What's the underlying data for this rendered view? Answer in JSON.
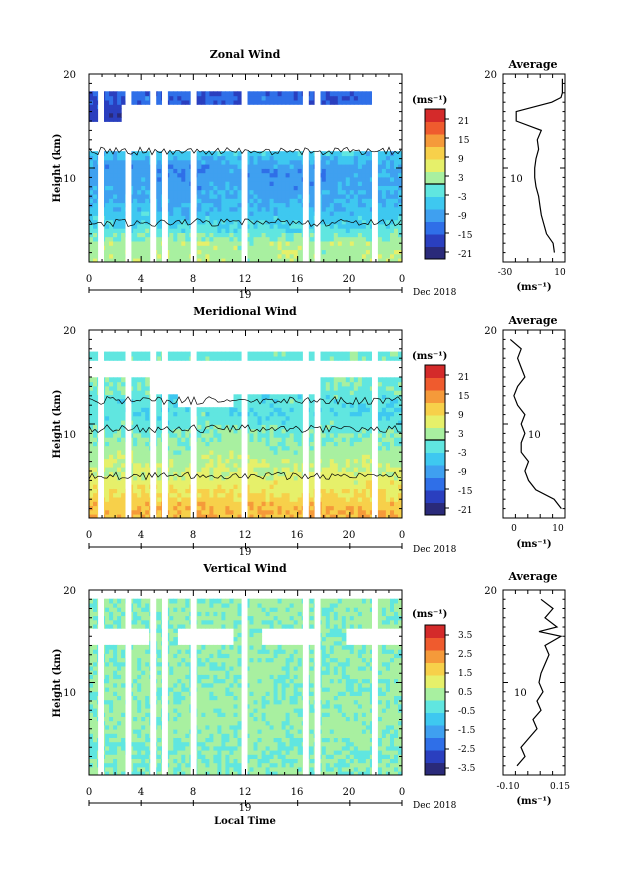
{
  "panels": [
    {
      "title": "Zonal Wind",
      "ylabel": "Height (km)",
      "y_ticks": [
        "20",
        "10"
      ],
      "x_ticks": [
        "0",
        "4",
        "8",
        "12",
        "16",
        "20",
        "0"
      ],
      "date_mark": "19",
      "date_label": "Dec 2018",
      "cbar_unit": "(ms⁻¹)",
      "cbar_ticks": [
        "21",
        "15",
        "9",
        "3",
        "-3",
        "-9",
        "-15",
        "-21"
      ],
      "avg_title": "Average",
      "avg_y_ticks": [
        "20",
        "10"
      ],
      "avg_x_ticks": [
        "-30",
        "10"
      ],
      "avg_unit": "(ms⁻¹)"
    },
    {
      "title": "Meridional Wind",
      "ylabel": "Height (km)",
      "y_ticks": [
        "20",
        "10"
      ],
      "x_ticks": [
        "0",
        "4",
        "8",
        "12",
        "16",
        "20",
        "0"
      ],
      "date_mark": "19",
      "date_label": "Dec 2018",
      "cbar_unit": "(ms⁻¹)",
      "cbar_ticks": [
        "21",
        "15",
        "9",
        "3",
        "-3",
        "-9",
        "-15",
        "-21"
      ],
      "avg_title": "Average",
      "avg_y_ticks": [
        "20",
        "10"
      ],
      "avg_x_ticks": [
        "0",
        "10"
      ],
      "avg_unit": "(ms⁻¹)"
    },
    {
      "title": "Vertical Wind",
      "ylabel": "Height (km)",
      "y_ticks": [
        "20",
        "10"
      ],
      "x_ticks": [
        "0",
        "4",
        "8",
        "12",
        "16",
        "20",
        "0"
      ],
      "date_mark": "19",
      "date_label": "Dec 2018",
      "xlabel": "Local Time",
      "cbar_unit": "(ms⁻¹)",
      "cbar_ticks": [
        "3.5",
        "2.5",
        "1.5",
        "0.5",
        "-0.5",
        "-1.5",
        "-2.5",
        "-3.5"
      ],
      "avg_title": "Average",
      "avg_y_ticks": [
        "20",
        "10"
      ],
      "avg_x_ticks": [
        "-0.10",
        "0.15"
      ],
      "avg_unit": "(ms⁻¹)"
    }
  ],
  "colors": {
    "colormap": [
      "#2a2a7a",
      "#2a3fbf",
      "#2f6fe8",
      "#3fa0f0",
      "#3ec8f0",
      "#60e6e0",
      "#a8f0a0",
      "#e6f06a",
      "#f7d04a",
      "#f59a3a",
      "#ef5b2e",
      "#d42a2a"
    ]
  },
  "chart_data": [
    {
      "type": "heatmap",
      "title": "Zonal Wind",
      "x_unit": "local time (h)",
      "xlim": [
        0,
        24
      ],
      "ylim": [
        0,
        20
      ],
      "zlim": [
        -24,
        24
      ],
      "ylabel": "Height (km)",
      "heights_km": [
        2,
        4,
        6,
        8,
        10,
        11.5,
        12.5,
        14,
        16,
        17.5,
        18.5
      ],
      "times_h": [
        0,
        2,
        4,
        6,
        8,
        10,
        12,
        14,
        16,
        18,
        20,
        22
      ],
      "values": [
        [
          3,
          2,
          3,
          2,
          3,
          2,
          2,
          3,
          2,
          2,
          3,
          3
        ],
        [
          -4,
          -5,
          -4,
          -5,
          -4,
          -5,
          -4,
          -5,
          -4,
          -5,
          -4,
          -3
        ],
        [
          -7,
          -8,
          -7,
          -9,
          -8,
          -7,
          -8,
          -7,
          -8,
          -7,
          -8,
          -6
        ],
        [
          -9,
          -10,
          -9,
          -11,
          -10,
          -9,
          -10,
          -11,
          -10,
          -9,
          -10,
          -9
        ],
        [
          -10,
          -11,
          -10,
          -12,
          -11,
          -10,
          -11,
          -10,
          -11,
          -10,
          -9,
          -8
        ],
        [
          -6,
          -7,
          -5,
          -6,
          -6,
          -5,
          -6,
          -5,
          -6,
          -5,
          -7,
          -6
        ],
        [
          null,
          null,
          null,
          null,
          null,
          null,
          null,
          null,
          null,
          null,
          null,
          null
        ],
        [
          null,
          null,
          null,
          null,
          null,
          null,
          null,
          null,
          null,
          null,
          null,
          null
        ],
        [
          -18,
          -19,
          null,
          null,
          null,
          null,
          null,
          null,
          null,
          null,
          null,
          null
        ],
        [
          -16,
          -15,
          -14,
          -15,
          -16,
          -15,
          -14,
          -15,
          -16,
          -15,
          -14,
          null
        ],
        [
          null,
          null,
          null,
          null,
          null,
          null,
          null,
          null,
          null,
          null,
          null,
          null
        ]
      ]
    },
    {
      "type": "heatmap",
      "title": "Meridional Wind",
      "x_unit": "local time (h)",
      "xlim": [
        0,
        24
      ],
      "ylim": [
        0,
        20
      ],
      "zlim": [
        -24,
        24
      ],
      "ylabel": "Height (km)",
      "heights_km": [
        1,
        3,
        5,
        7,
        9,
        11,
        12.5,
        14,
        16,
        17.5
      ],
      "times_h": [
        0,
        2,
        4,
        6,
        8,
        10,
        12,
        14,
        16,
        18,
        20,
        22
      ],
      "values": [
        [
          12,
          11,
          12,
          11,
          12,
          11,
          12,
          11,
          12,
          11,
          12,
          11
        ],
        [
          8,
          7,
          8,
          7,
          8,
          7,
          8,
          7,
          8,
          7,
          8,
          7
        ],
        [
          5,
          4,
          5,
          4,
          5,
          4,
          5,
          4,
          5,
          4,
          5,
          4
        ],
        [
          2,
          3,
          2,
          1,
          2,
          3,
          2,
          1,
          2,
          3,
          2,
          1
        ],
        [
          0,
          -1,
          0,
          -1,
          0,
          1,
          0,
          -1,
          0,
          -1,
          0,
          -1
        ],
        [
          -3,
          -2,
          -4,
          -3,
          -2,
          -3,
          -4,
          -3,
          -2,
          -3,
          -4,
          -3
        ],
        [
          -2,
          -3,
          -2,
          -3,
          null,
          -2,
          -3,
          -2,
          -3,
          -2,
          -3,
          -2
        ],
        [
          -1,
          0,
          -1,
          null,
          null,
          null,
          null,
          null,
          -1,
          0,
          -1,
          0
        ],
        [
          null,
          null,
          null,
          null,
          null,
          null,
          null,
          null,
          null,
          null,
          null,
          null
        ],
        [
          -2,
          -1,
          -2,
          -1,
          -2,
          -1,
          -2,
          -1,
          -2,
          -1,
          -2,
          -1
        ]
      ]
    },
    {
      "type": "heatmap",
      "title": "Vertical Wind",
      "x_unit": "local time (h)",
      "xlim": [
        0,
        24
      ],
      "ylim": [
        0,
        20
      ],
      "zlim": [
        -4,
        4
      ],
      "ylabel": "Height (km)",
      "xlabel": "Local Time",
      "heights_km": [
        1,
        3,
        5,
        7,
        9,
        11,
        13,
        15,
        17,
        19
      ],
      "times_h": [
        0,
        2,
        4,
        6,
        8,
        10,
        12,
        14,
        16,
        18,
        20,
        22
      ],
      "values": [
        [
          0.2,
          0.1,
          0.0,
          0.1,
          0.2,
          0.0,
          0.1,
          0.2,
          0.1,
          0.0,
          0.1,
          0.0
        ],
        [
          -0.2,
          0.1,
          -0.3,
          0.0,
          -0.1,
          0.1,
          0.0,
          -0.2,
          0.1,
          0.0,
          -0.1,
          0.1
        ],
        [
          0.3,
          0.2,
          0.1,
          0.2,
          0.3,
          0.1,
          0.2,
          0.1,
          0.3,
          0.2,
          0.1,
          0.2
        ],
        [
          0.1,
          0.3,
          0.2,
          0.1,
          0.2,
          0.3,
          0.1,
          0.2,
          0.1,
          0.3,
          0.2,
          0.1
        ],
        [
          0.0,
          0.2,
          0.1,
          0.0,
          0.1,
          0.2,
          0.1,
          0.0,
          0.2,
          0.1,
          0.0,
          0.1
        ],
        [
          0.2,
          0.1,
          0.3,
          0.2,
          0.1,
          0.2,
          0.3,
          0.1,
          0.2,
          0.1,
          0.3,
          0.2
        ],
        [
          0.1,
          0.0,
          0.1,
          0.2,
          0.0,
          0.1,
          0.2,
          0.1,
          0.0,
          0.2,
          0.1,
          0.0
        ],
        [
          0.1,
          null,
          0.0,
          0.1,
          null,
          0.1,
          0.0,
          null,
          0.1,
          0.0,
          null,
          0.1
        ],
        [
          0.2,
          0.1,
          0.2,
          0.1,
          0.2,
          0.1,
          0.2,
          0.1,
          0.2,
          0.1,
          0.2,
          0.1
        ],
        [
          0.1,
          0.2,
          0.1,
          0.2,
          0.1,
          0.2,
          0.1,
          0.2,
          0.1,
          0.2,
          0.1,
          0.2
        ]
      ]
    },
    {
      "type": "line",
      "title": "Average",
      "panel": "Zonal Wind",
      "xlim": [
        -35,
        12
      ],
      "ylim": [
        0,
        20
      ],
      "x": [
        4,
        3,
        -2,
        -4,
        -6,
        -7,
        -8,
        -10,
        -11,
        -11,
        -10,
        -8,
        -9,
        -6,
        -25,
        -25,
        2,
        9,
        10,
        10
      ],
      "y": [
        1,
        2,
        3,
        4,
        5,
        6,
        7,
        8,
        9,
        10,
        11,
        12,
        13,
        14,
        15,
        16,
        17,
        17.5,
        18,
        19.5
      ]
    },
    {
      "type": "line",
      "title": "Average",
      "panel": "Meridional Wind",
      "xlim": [
        -5,
        12
      ],
      "ylim": [
        0,
        20
      ],
      "x": [
        11,
        9,
        4,
        2,
        1,
        2,
        0,
        0,
        1,
        0,
        1,
        -1,
        -2,
        -1,
        1,
        0,
        -1,
        0,
        -3
      ],
      "y": [
        1,
        2,
        3,
        4,
        5,
        6,
        7,
        8,
        9,
        10,
        11,
        12,
        13,
        14,
        15,
        16,
        17,
        18,
        19
      ]
    },
    {
      "type": "line",
      "title": "Average",
      "panel": "Vertical Wind",
      "xlim": [
        -0.15,
        0.16
      ],
      "ylim": [
        0,
        20
      ],
      "x": [
        -0.08,
        -0.04,
        -0.06,
        -0.02,
        0.02,
        0.0,
        0.04,
        0.02,
        0.05,
        0.03,
        0.04,
        0.06,
        0.08,
        0.06,
        0.14,
        0.03,
        0.12,
        0.06,
        0.1,
        0.04
      ],
      "y": [
        1,
        2,
        3,
        4,
        5,
        6,
        7,
        8,
        9,
        10,
        11,
        12,
        13,
        14,
        15,
        15.5,
        16,
        17,
        18,
        19
      ]
    }
  ]
}
